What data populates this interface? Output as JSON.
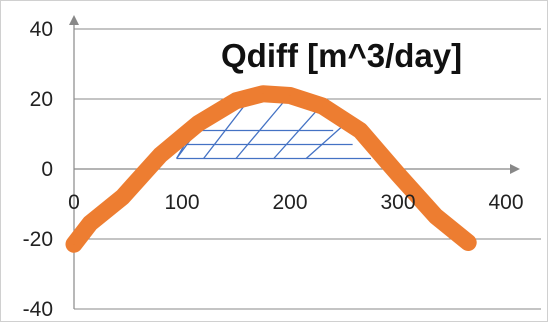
{
  "chart_data": {
    "type": "line",
    "title": "Qdiff [m^3/day]",
    "xlabel": "",
    "ylabel": "",
    "xlim": [
      0,
      400
    ],
    "ylim": [
      -40,
      40
    ],
    "x_ticks": [
      0,
      100,
      200,
      300,
      400
    ],
    "y_ticks": [
      -40,
      -20,
      0,
      20,
      40
    ],
    "x_tick_labels": [
      "0",
      "100",
      "200",
      "300",
      "400"
    ],
    "y_tick_labels": [
      "-40",
      "-20",
      "0",
      "20",
      "40"
    ],
    "grid": "horizontal",
    "legend": "none",
    "series": [
      {
        "color": "#ED7D31",
        "x": [
          0,
          15,
          45,
          80,
          115,
          150,
          175,
          200,
          230,
          265,
          300,
          335,
          365
        ],
        "y": [
          -21.5,
          -15.5,
          -8,
          4,
          13,
          19.5,
          21.5,
          21,
          18,
          11,
          -1.5,
          -13.5,
          -21
        ]
      }
    ],
    "hatch_color": "#4472C4",
    "hatch_region": {
      "top": [
        [
          110,
          11
        ],
        [
          240,
          10.5
        ]
      ],
      "bottom": [
        [
          95,
          3
        ],
        [
          275,
          3.5
        ]
      ],
      "left_x_top": 110,
      "left_x_bottom": 95,
      "rows_y": [
        11,
        7,
        3
      ],
      "cross_lines": [
        [
          [
            95,
            3
          ],
          [
            125,
            15.5
          ]
        ],
        [
          [
            120,
            3
          ],
          [
            160,
            19
          ]
        ],
        [
          [
            150,
            3
          ],
          [
            195,
            19.5
          ]
        ],
        [
          [
            185,
            3
          ],
          [
            230,
            18.5
          ]
        ],
        [
          [
            215,
            3
          ],
          [
            255,
            14
          ]
        ]
      ]
    },
    "axis_color": "#888888",
    "grid_color": "#888888"
  }
}
